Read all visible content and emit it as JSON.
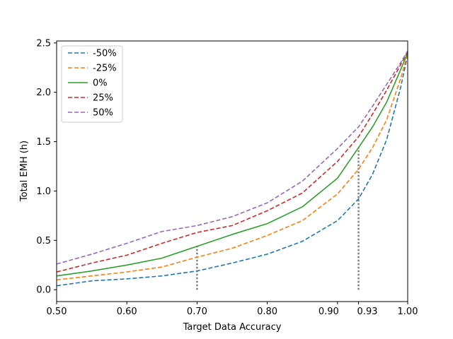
{
  "chart_data": {
    "type": "line",
    "xlabel": "Target Data Accuracy",
    "ylabel": "Total EMH (h)",
    "xlim": [
      0.5,
      1.0
    ],
    "ylim": [
      -0.12,
      2.52
    ],
    "x_ticks": [
      {
        "value": 0.5,
        "label": "0.50"
      },
      {
        "value": 0.6,
        "label": "0.60"
      },
      {
        "value": 0.7,
        "label": "0.70"
      },
      {
        "value": 0.8,
        "label": "0.80"
      },
      {
        "value": 0.9,
        "label": "0.90"
      },
      {
        "value": 0.93,
        "label": "0.93"
      },
      {
        "value": 1.0,
        "label": "1.00"
      }
    ],
    "y_ticks": [
      {
        "value": 0.0,
        "label": "0.0"
      },
      {
        "value": 0.5,
        "label": "0.5"
      },
      {
        "value": 1.0,
        "label": "1.0"
      },
      {
        "value": 1.5,
        "label": "1.5"
      },
      {
        "value": 2.0,
        "label": "2.0"
      },
      {
        "value": 2.5,
        "label": "2.5"
      }
    ],
    "grid": false,
    "legend_position": "top-left",
    "x": [
      0.5,
      0.55,
      0.6,
      0.65,
      0.7,
      0.75,
      0.8,
      0.85,
      0.9,
      0.93,
      0.95,
      0.97,
      0.99,
      1.0
    ],
    "series": [
      {
        "name": "-50%",
        "color": "#1f77b4",
        "dash": "dashed",
        "values": [
          0.04,
          0.09,
          0.11,
          0.14,
          0.19,
          0.27,
          0.36,
          0.49,
          0.7,
          0.92,
          1.17,
          1.52,
          2.05,
          2.38
        ]
      },
      {
        "name": "-25%",
        "color": "#ff7f0e",
        "dash": "dashed",
        "values": [
          0.1,
          0.14,
          0.18,
          0.23,
          0.33,
          0.42,
          0.55,
          0.7,
          0.97,
          1.22,
          1.44,
          1.72,
          2.14,
          2.39
        ]
      },
      {
        "name": "0%",
        "color": "#2ca02c",
        "dash": "solid",
        "values": [
          0.14,
          0.19,
          0.25,
          0.32,
          0.44,
          0.56,
          0.67,
          0.84,
          1.13,
          1.44,
          1.65,
          1.9,
          2.23,
          2.4
        ]
      },
      {
        "name": "25%",
        "color": "#d62728",
        "dash": "dashed",
        "values": [
          0.18,
          0.27,
          0.35,
          0.47,
          0.58,
          0.65,
          0.8,
          0.98,
          1.3,
          1.55,
          1.78,
          2.02,
          2.28,
          2.41
        ]
      },
      {
        "name": "50%",
        "color": "#9467bd",
        "dash": "dashed",
        "values": [
          0.26,
          0.36,
          0.47,
          0.59,
          0.65,
          0.74,
          0.88,
          1.1,
          1.43,
          1.65,
          1.86,
          2.08,
          2.3,
          2.42
        ]
      }
    ],
    "reference_lines": [
      {
        "x": 0.7,
        "y_top": 0.44,
        "color": "#808080",
        "style": "dotted"
      },
      {
        "x": 0.93,
        "y_top": 1.44,
        "color": "#808080",
        "style": "dotted"
      }
    ]
  }
}
